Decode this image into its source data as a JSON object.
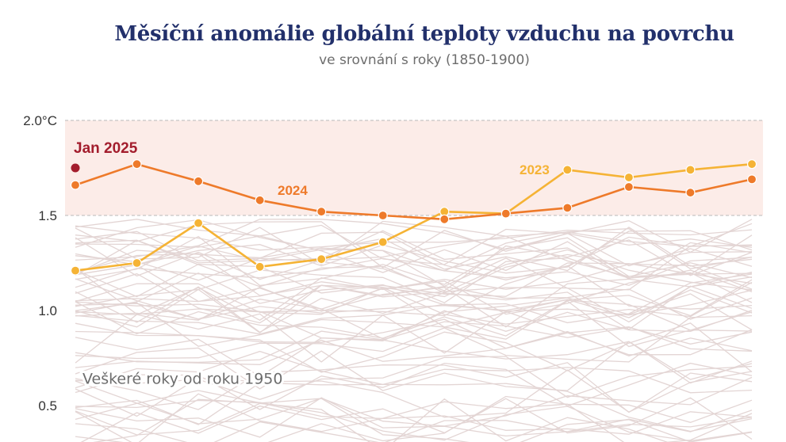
{
  "chart_data": {
    "type": "line",
    "title": "Měsíční anomálie globální teploty vzduchu na povrchu",
    "subtitle": "ve srovnání s roky (1850-1900)",
    "ylim": [
      0.45,
      2.0
    ],
    "y_ticks": [
      "2.0°C",
      "1.5",
      "1.0",
      "0.5"
    ],
    "y_tick_values": [
      2.0,
      1.5,
      1.0,
      0.5
    ],
    "shaded_band": [
      1.5,
      2.0
    ],
    "months": [
      1,
      2,
      3,
      4,
      5,
      6,
      7,
      8,
      9,
      10,
      11,
      12
    ],
    "series": [
      {
        "name": "2024",
        "color": "#ee7a2a",
        "values": [
          1.66,
          1.77,
          1.68,
          1.58,
          1.52,
          1.5,
          1.48,
          1.51,
          1.54,
          1.65,
          1.62,
          1.69
        ]
      },
      {
        "name": "2023",
        "color": "#f5b335",
        "values": [
          1.21,
          1.25,
          1.46,
          1.23,
          1.27,
          1.36,
          1.52,
          1.51,
          1.74,
          1.7,
          1.74,
          1.77
        ]
      }
    ],
    "highlight_point": {
      "label": "Jan 2025",
      "month": 1,
      "value": 1.75,
      "color": "#a31d2d"
    },
    "background_label": "Veškeré roky od roku 1950",
    "background_color": "#e3d5d4"
  }
}
